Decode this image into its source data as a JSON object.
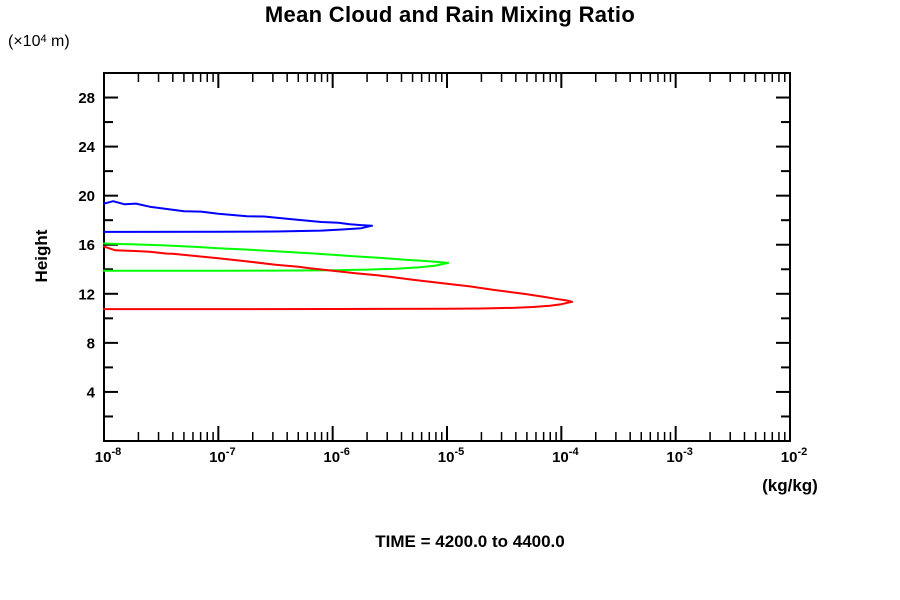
{
  "header": {
    "title": "Mean Cloud and Rain Mixing Ratio"
  },
  "caption": "TIME = 4200.0 to 4400.0",
  "chart_data": {
    "type": "line",
    "title": "Mean Cloud and Rain Mixing Ratio",
    "xlabel": "(kg/kg)",
    "ylabel": "Height",
    "y_unit": {
      "prefix": "(×10",
      "exponent": "4",
      "suffix": " m)"
    },
    "x_scale": "log10",
    "xlim_log10": [
      -8,
      -2
    ],
    "x_major_tick_exponents": [
      -8,
      -7,
      -6,
      -5,
      -4,
      -3,
      -2
    ],
    "x_minor_ticks": "log positions 2-9 within each decade",
    "ylim": [
      0,
      30
    ],
    "y_major_step": 4,
    "y_minor_step": 2,
    "y_major_tick_labels": [
      4,
      8,
      12,
      16,
      20,
      24,
      28
    ],
    "grid": false,
    "legend": "none",
    "frame_ticks": "inward on all four sides",
    "axis_color": "#000000",
    "background": "#ffffff",
    "caption": "TIME = 4200.0 to 4400.0",
    "series": [
      {
        "name": "blue",
        "color": "#0000ff",
        "description": "profile contour touching left axis between heights 17.0 and 19.4, tip at 2.2e-6 kg/kg",
        "points": [
          [
            -8.0,
            19.35
          ],
          [
            -7.92,
            19.55
          ],
          [
            -7.82,
            19.3
          ],
          [
            -7.72,
            19.35
          ],
          [
            -7.6,
            19.1
          ],
          [
            -7.3,
            18.73
          ],
          [
            -7.15,
            18.7
          ],
          [
            -7.0,
            18.53
          ],
          [
            -6.9,
            18.45
          ],
          [
            -6.75,
            18.33
          ],
          [
            -6.6,
            18.3
          ],
          [
            -6.4,
            18.12
          ],
          [
            -6.1,
            17.85
          ],
          [
            -5.95,
            17.8
          ],
          [
            -5.85,
            17.67
          ],
          [
            -5.75,
            17.6
          ],
          [
            -5.655,
            17.55
          ],
          [
            -5.75,
            17.35
          ],
          [
            -5.9,
            17.25
          ],
          [
            -6.1,
            17.15
          ],
          [
            -6.5,
            17.08
          ],
          [
            -7.0,
            17.06
          ],
          [
            -8.0,
            17.05
          ]
        ]
      },
      {
        "name": "green",
        "color": "#00ff00",
        "description": "profile contour touching left axis between heights 13.9 and 16.1, tip at 1e-5 kg/kg",
        "points": [
          [
            -8.0,
            16.1
          ],
          [
            -7.7,
            16.02
          ],
          [
            -7.5,
            15.96
          ],
          [
            -7.2,
            15.82
          ],
          [
            -7.0,
            15.71
          ],
          [
            -6.7,
            15.58
          ],
          [
            -6.5,
            15.47
          ],
          [
            -6.2,
            15.3
          ],
          [
            -6.0,
            15.18
          ],
          [
            -5.8,
            15.05
          ],
          [
            -5.6,
            14.94
          ],
          [
            -5.4,
            14.8
          ],
          [
            -5.2,
            14.68
          ],
          [
            -5.05,
            14.57
          ],
          [
            -4.99,
            14.52
          ],
          [
            -5.1,
            14.3
          ],
          [
            -5.25,
            14.15
          ],
          [
            -5.45,
            14.05
          ],
          [
            -5.7,
            13.97
          ],
          [
            -6.0,
            13.92
          ],
          [
            -6.5,
            13.89
          ],
          [
            -7.0,
            13.88
          ],
          [
            -8.0,
            13.88
          ]
        ]
      },
      {
        "name": "red",
        "color": "#ff0000",
        "description": "profile contour touching left axis between heights 10.75 and 15.85, tip at 1.2e-4 kg/kg",
        "points": [
          [
            -8.0,
            15.85
          ],
          [
            -7.95,
            15.7
          ],
          [
            -7.9,
            15.55
          ],
          [
            -7.75,
            15.5
          ],
          [
            -7.6,
            15.43
          ],
          [
            -7.45,
            15.28
          ],
          [
            -7.4,
            15.27
          ],
          [
            -7.2,
            15.08
          ],
          [
            -7.0,
            14.9
          ],
          [
            -6.8,
            14.7
          ],
          [
            -6.5,
            14.37
          ],
          [
            -6.3,
            14.2
          ],
          [
            -6.2,
            14.08
          ],
          [
            -6.0,
            13.88
          ],
          [
            -5.8,
            13.67
          ],
          [
            -5.6,
            13.5
          ],
          [
            -5.5,
            13.39
          ],
          [
            -5.3,
            13.15
          ],
          [
            -5.0,
            12.82
          ],
          [
            -4.8,
            12.6
          ],
          [
            -4.6,
            12.33
          ],
          [
            -4.45,
            12.15
          ],
          [
            -4.3,
            11.96
          ],
          [
            -4.15,
            11.75
          ],
          [
            -4.05,
            11.59
          ],
          [
            -3.95,
            11.45
          ],
          [
            -3.905,
            11.35
          ],
          [
            -4.0,
            11.15
          ],
          [
            -4.1,
            11.02
          ],
          [
            -4.25,
            10.92
          ],
          [
            -4.4,
            10.86
          ],
          [
            -4.7,
            10.8
          ],
          [
            -5.0,
            10.78
          ],
          [
            -6.0,
            10.76
          ],
          [
            -7.0,
            10.75
          ],
          [
            -8.0,
            10.75
          ]
        ]
      }
    ]
  }
}
